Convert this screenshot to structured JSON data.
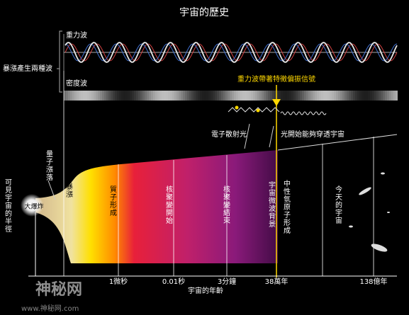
{
  "title": "宇宙的歷史",
  "waves": {
    "group_label": "暴漲產生兩種波",
    "gravity_label": "重力波",
    "density_label": "密度波",
    "signal_label": "重力波帶著特徵偏振信號"
  },
  "photons": {
    "scatter_label": "電子散射光",
    "transparent_label": "光開始能夠穿透宇宙"
  },
  "side_labels": {
    "radius": "可見宇宙的半徑",
    "fluctuation": "量子漲落",
    "big_bang": "大爆炸"
  },
  "epochs": [
    "暴漲",
    "質子形成",
    "核聚變開始",
    "核聚變結束",
    "宇宙微波背景",
    "中性氫原子形成",
    "今天的宇宙"
  ],
  "timeline": {
    "axis_label": "宇宙的年齡",
    "ticks": [
      "1微秒",
      "0.01秒",
      "3分鐘",
      "38萬年",
      "138億年"
    ]
  },
  "watermark": [
    "神秘网",
    "www.神秘网.com"
  ]
}
